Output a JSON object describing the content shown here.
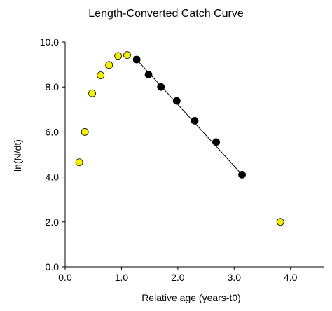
{
  "chart_data": {
    "type": "scatter",
    "title": "Length-Converted Catch Curve",
    "xlabel": "Relative age (years-t0)",
    "ylabel": "ln(N/dt)",
    "xlim": [
      0,
      4.6
    ],
    "ylim": [
      0,
      10
    ],
    "xticks": [
      "0.0",
      "1.0",
      "2.0",
      "3.0",
      "4.0"
    ],
    "yticks": [
      "0.0",
      "2.0",
      "4.0",
      "6.0",
      "8.0",
      "10.0"
    ],
    "grid": false,
    "series": [
      {
        "role": "excluded",
        "color": "#f5f000",
        "points": [
          {
            "x": 0.25,
            "y": 4.65
          },
          {
            "x": 0.35,
            "y": 6.0
          },
          {
            "x": 0.48,
            "y": 7.72
          },
          {
            "x": 0.63,
            "y": 8.52
          },
          {
            "x": 0.78,
            "y": 8.98
          },
          {
            "x": 0.94,
            "y": 9.38
          },
          {
            "x": 1.1,
            "y": 9.42
          },
          {
            "x": 3.82,
            "y": 2.0
          }
        ]
      },
      {
        "role": "regression",
        "color": "#000000",
        "points": [
          {
            "x": 1.27,
            "y": 9.22
          },
          {
            "x": 1.48,
            "y": 8.55
          },
          {
            "x": 1.7,
            "y": 8.0
          },
          {
            "x": 1.98,
            "y": 7.38
          },
          {
            "x": 2.3,
            "y": 6.5
          },
          {
            "x": 2.68,
            "y": 5.55
          },
          {
            "x": 3.14,
            "y": 4.1
          }
        ]
      }
    ],
    "fit_line": {
      "x1": 1.27,
      "y1": 9.22,
      "x2": 3.14,
      "y2": 4.1
    }
  }
}
